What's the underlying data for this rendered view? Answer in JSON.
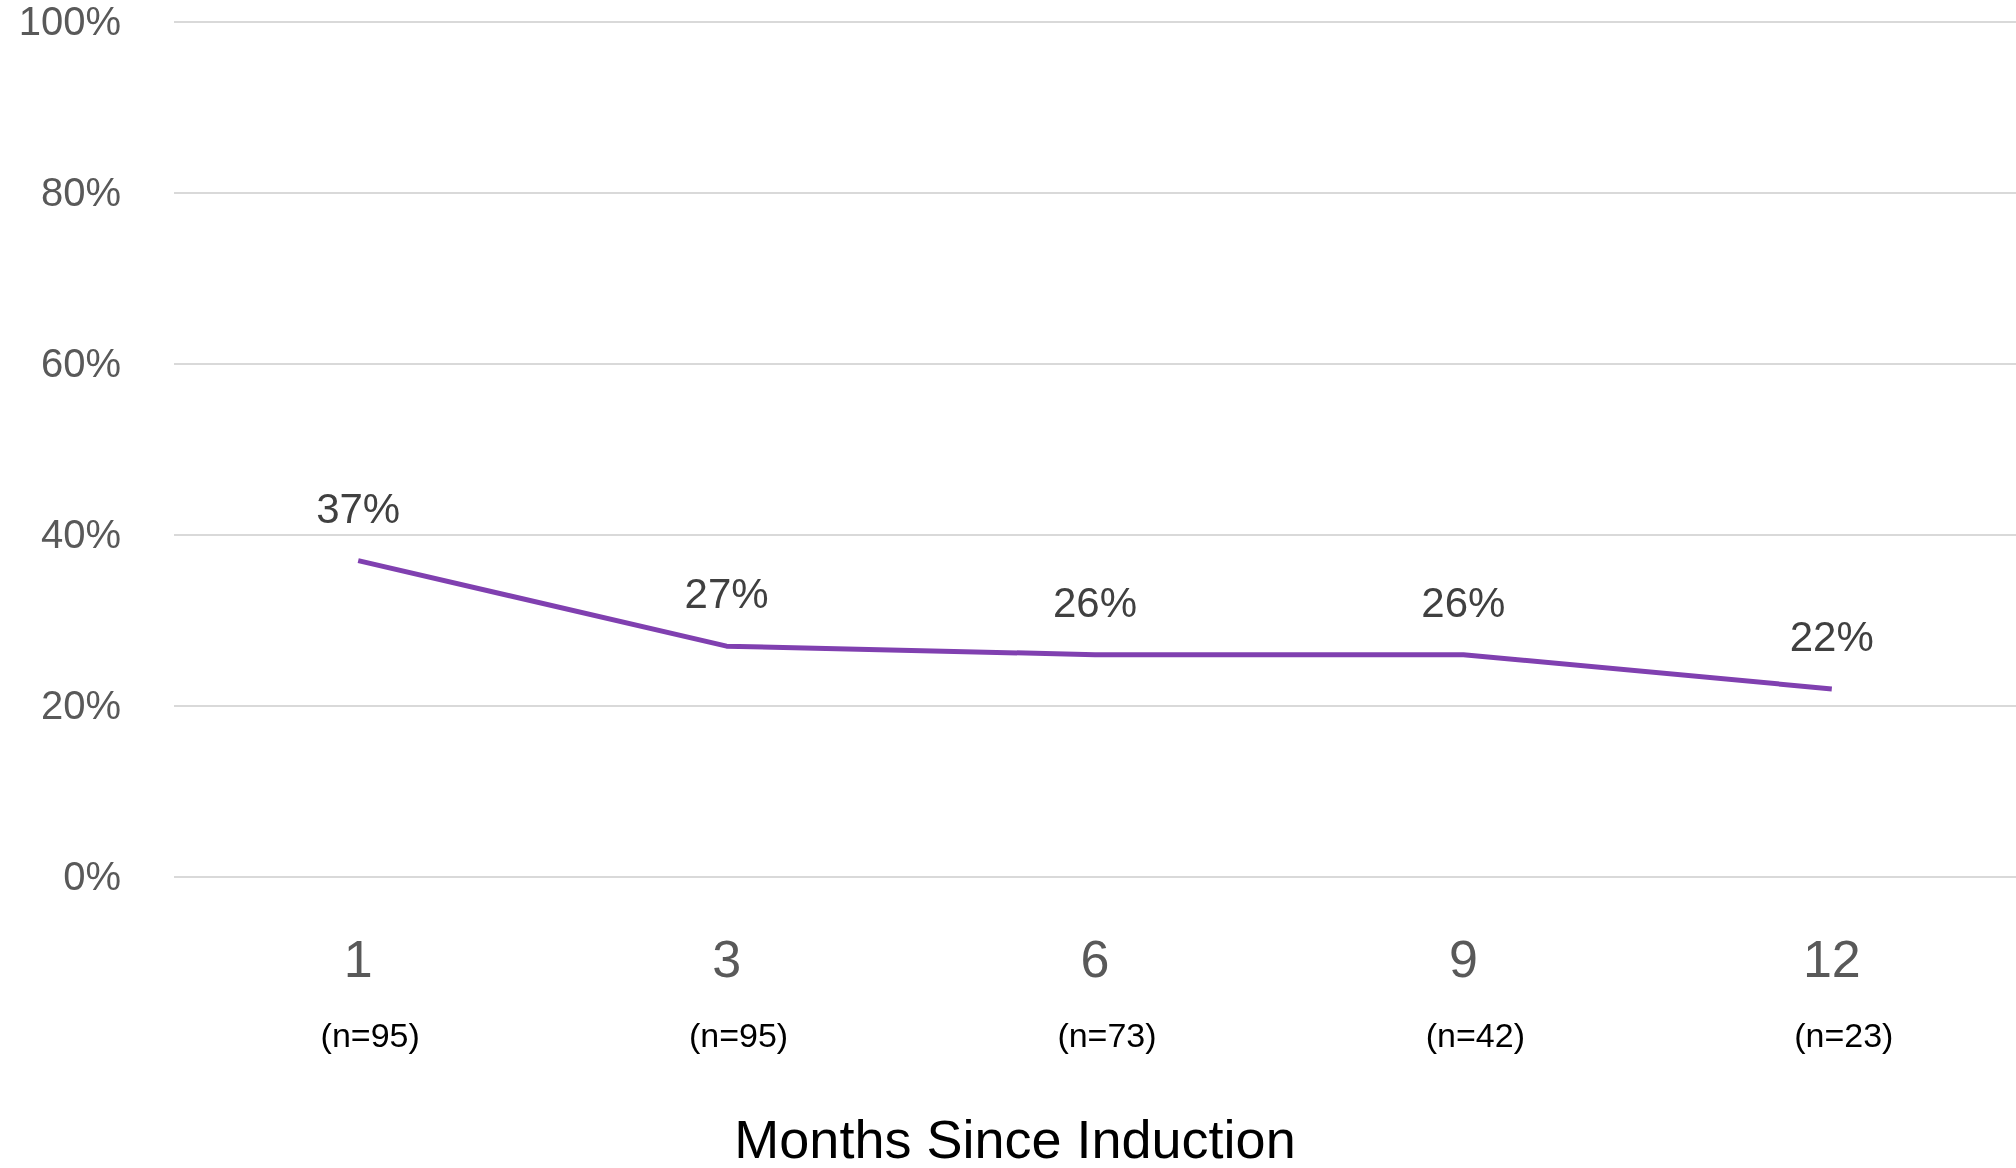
{
  "chart_data": {
    "type": "line",
    "xlabel": "Months Since Induction",
    "categories": [
      "1",
      "3",
      "6",
      "9",
      "12"
    ],
    "series": [
      {
        "color": "#8040b0",
        "values": [
          37,
          27,
          26,
          26,
          22
        ]
      }
    ],
    "ylim": [
      0,
      100
    ],
    "yticks": [
      {
        "value": 0,
        "label": "0%"
      },
      {
        "value": 20,
        "label": "20%"
      },
      {
        "value": 40,
        "label": "40%"
      },
      {
        "value": 60,
        "label": "60%"
      },
      {
        "value": 80,
        "label": "80%"
      },
      {
        "value": 100,
        "label": "100%"
      }
    ],
    "grid": "y",
    "marker": "none",
    "line_style": "solid",
    "value_labels": [
      "37%",
      "27%",
      "26%",
      "26%",
      "22%"
    ],
    "annotations": [
      "(n=95)",
      "(n=95)",
      "(n=73)",
      "(n=42)",
      "(n=23)"
    ]
  }
}
